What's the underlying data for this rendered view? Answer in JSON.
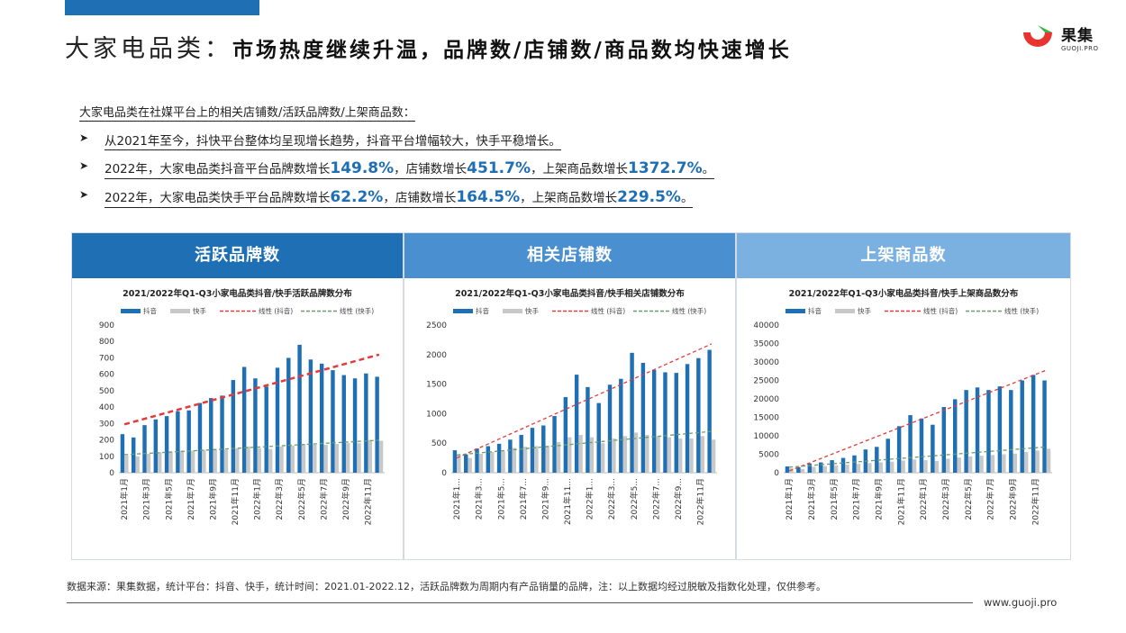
{
  "header": {
    "title_light": "大家电品类：",
    "title_bold": "市场热度继续升温，品牌数/店铺数/商品数均快速增长",
    "logo_text": "果集",
    "logo_sub": "GUOJI.PRO"
  },
  "summary": {
    "intro": "大家电品类在社媒平台上的相关店铺数/活跃品牌数/上架商品数：",
    "bullet1": "从2021年至今，抖快平台整体均呈现增长趋势，抖音平台增幅较大，快手平稳增长。",
    "bullet2_pre": "2022年，大家电品类抖音平台品牌数增长",
    "bullet2_v1": "149.8%",
    "bullet2_mid1": "，店铺数增长",
    "bullet2_v2": "451.7%",
    "bullet2_mid2": "，上架商品数增长",
    "bullet2_v3": "1372.7%",
    "bullet2_end": "。",
    "bullet3_pre": "2022年，大家电品类快手平台品牌数增长",
    "bullet3_v1": "62.2%",
    "bullet3_mid1": "，店铺数增长",
    "bullet3_v2": "164.5%",
    "bullet3_mid2": "，上架商品数增长",
    "bullet3_v3": "229.5%",
    "bullet3_end": "。"
  },
  "panels": [
    {
      "head": "活跃品牌数",
      "head_color": "#1f6fb5"
    },
    {
      "head": "相关店铺数",
      "head_color": "#4a90d0"
    },
    {
      "head": "上架商品数",
      "head_color": "#7bb1e0"
    }
  ],
  "colors": {
    "douyin": "#1f6fb5",
    "kuaishou": "#c8c8c8",
    "trend_douyin": "#e23b3b",
    "trend_kuaishou": "#6a9e6a"
  },
  "legend": {
    "douyin": "抖音",
    "kuaishou": "快手",
    "trend_douyin": "线性 (抖音)",
    "trend_kuaishou": "线性 (快手)"
  },
  "chart_data": [
    {
      "type": "bar",
      "title": "2021/2022年Q1-Q3小家电品类抖音/快手活跃品牌数分布",
      "ylim": [
        0,
        900
      ],
      "yticks": [
        0,
        100,
        200,
        300,
        400,
        500,
        600,
        700,
        800,
        900
      ],
      "categories": [
        "2021年1月",
        "2021年2月",
        "2021年3月",
        "2021年4月",
        "2021年5月",
        "2021年6月",
        "2021年7月",
        "2021年8月",
        "2021年9月",
        "2021年10月",
        "2021年11月",
        "2021年12月",
        "2022年1月",
        "2022年2月",
        "2022年3月",
        "2022年4月",
        "2022年5月",
        "2022年6月",
        "2022年7月",
        "2022年8月",
        "2022年9月",
        "2022年10月",
        "2022年11月",
        "2022年12月"
      ],
      "tick_labels": [
        "2021年1月",
        "",
        "2021年3月",
        "",
        "2021年5月",
        "",
        "2021年7月",
        "",
        "2021年9月",
        "",
        "2021年11月",
        "",
        "2022年1月",
        "",
        "2022年3月",
        "",
        "2022年5月",
        "",
        "2022年7月",
        "",
        "2022年9月",
        "",
        "2022年11月",
        ""
      ],
      "series": [
        {
          "name": "抖音",
          "values": [
            235,
            215,
            290,
            325,
            345,
            375,
            380,
            425,
            455,
            470,
            565,
            645,
            575,
            525,
            640,
            700,
            780,
            690,
            665,
            625,
            595,
            575,
            605,
            585
          ]
        },
        {
          "name": "快手",
          "values": [
            105,
            100,
            115,
            125,
            125,
            135,
            135,
            140,
            145,
            140,
            150,
            160,
            150,
            145,
            160,
            165,
            175,
            170,
            170,
            175,
            180,
            180,
            200,
            195
          ]
        }
      ],
      "trend": {
        "douyin": [
          295,
          720
        ],
        "kuaishou": [
          110,
          198
        ]
      }
    },
    {
      "type": "bar",
      "title": "2021/2022年Q1-Q3小家电品类抖音/快手相关店铺数分布",
      "ylim": [
        0,
        2500
      ],
      "yticks": [
        0,
        500,
        1000,
        1500,
        2000,
        2500
      ],
      "categories": [
        "2021年1月",
        "2021年2月",
        "2021年3月",
        "2021年4月",
        "2021年5月",
        "2021年6月",
        "2021年7月",
        "2021年8月",
        "2021年9月",
        "2021年10月",
        "2021年11月",
        "2021年12月",
        "2022年1月",
        "2022年2月",
        "2022年3月",
        "2022年4月",
        "2022年5月",
        "2022年6月",
        "2022年7月",
        "2022年8月",
        "2022年9月",
        "2022年10月",
        "2022年11月",
        "2022年12月"
      ],
      "tick_labels": [
        "2021年1...",
        "",
        "2021年3...",
        "",
        "2021年5...",
        "",
        "2021年7...",
        "",
        "2021年9...",
        "",
        "2021年11...",
        "",
        "2022年1...",
        "",
        "2022年3...",
        "",
        "2022年5...",
        "",
        "2022年7...",
        "",
        "2022年9...",
        "",
        "2022年11月",
        ""
      ],
      "series": [
        {
          "name": "抖音",
          "values": [
            380,
            310,
            410,
            450,
            490,
            560,
            640,
            760,
            800,
            960,
            1280,
            1660,
            1450,
            1180,
            1490,
            1590,
            2030,
            1860,
            1740,
            1700,
            1690,
            1840,
            1940,
            2080
          ]
        },
        {
          "name": "快手",
          "values": [
            300,
            250,
            320,
            350,
            360,
            420,
            440,
            450,
            460,
            520,
            600,
            640,
            600,
            500,
            580,
            620,
            680,
            640,
            620,
            600,
            580,
            580,
            620,
            560
          ]
        }
      ],
      "trend": {
        "douyin": [
          250,
          2180
        ],
        "kuaishou": [
          300,
          700
        ]
      }
    },
    {
      "type": "bar",
      "title": "2021/2022年Q1-Q3小家电品类抖音/快手上架商品数分布",
      "ylim": [
        0,
        40000
      ],
      "yticks": [
        0,
        5000,
        10000,
        15000,
        20000,
        25000,
        30000,
        35000,
        40000
      ],
      "ytick_labels": [
        "0",
        "5000",
        "10000",
        "15000",
        "20000",
        "25000",
        "30000",
        "35000",
        "40000"
      ],
      "categories": [
        "2021年1月",
        "2021年2月",
        "2021年3月",
        "2021年4月",
        "2021年5月",
        "2021年6月",
        "2021年7月",
        "2021年8月",
        "2021年9月",
        "2021年10月",
        "2021年11月",
        "2021年12月",
        "2022年1月",
        "2022年2月",
        "2022年3月",
        "2022年4月",
        "2022年5月",
        "2022年6月",
        "2022年7月",
        "2022年8月",
        "2022年9月",
        "2022年10月",
        "2022年11月",
        "2022年12月"
      ],
      "tick_labels": [
        "2021年1月",
        "",
        "2021年3月",
        "",
        "2021年5月",
        "",
        "2021年7月",
        "",
        "2021年9月",
        "",
        "2021年11月",
        "",
        "2022年1月",
        "",
        "2022年3月",
        "",
        "2022年5月",
        "",
        "2022年7月",
        "",
        "2022年9月",
        "",
        "2022年11月",
        ""
      ],
      "series": [
        {
          "name": "抖音",
          "values": [
            1700,
            1500,
            2500,
            2800,
            3400,
            4000,
            4700,
            6300,
            7000,
            9200,
            12600,
            15600,
            14700,
            13000,
            17800,
            19900,
            22400,
            23100,
            22400,
            23400,
            22400,
            25000,
            26500,
            25000
          ]
        },
        {
          "name": "快手",
          "values": [
            1200,
            1000,
            1600,
            1800,
            2000,
            2200,
            2400,
            2600,
            2800,
            3000,
            3300,
            3600,
            3400,
            3200,
            3800,
            4100,
            4400,
            4600,
            4800,
            5000,
            5200,
            5600,
            6000,
            6500
          ]
        }
      ],
      "trend": {
        "douyin": [
          500,
          27800
        ],
        "kuaishou": [
          1500,
          7000
        ]
      }
    }
  ],
  "footer": {
    "note": "数据来源：果集数据，统计平台：抖音、快手，统计时间：2021.01-2022.12，活跃品牌数为周期内有产品销量的品牌，注：以上数据均经过脱敏及指数化处理，仅供参考。",
    "url": "www.guoji.pro"
  }
}
